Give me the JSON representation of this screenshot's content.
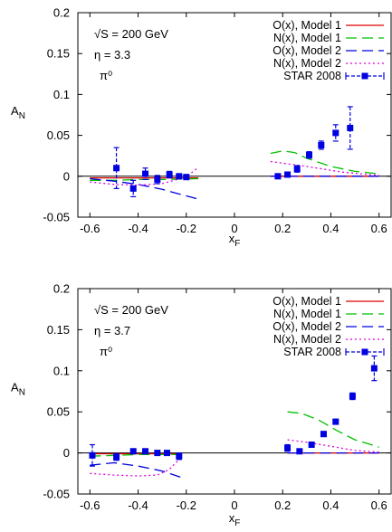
{
  "chart_data": [
    {
      "type": "scatter",
      "annotations": [
        "√S = 200 GeV",
        "η = 3.3",
        "π⁰"
      ],
      "xlabel": "x_F",
      "ylabel": "A_N",
      "xlim": [
        -0.65,
        0.65
      ],
      "ylim": [
        -0.05,
        0.2
      ],
      "xticks": [
        -0.6,
        -0.4,
        -0.2,
        0,
        0.2,
        0.4,
        0.6
      ],
      "yticks": [
        -0.05,
        0,
        0.05,
        0.1,
        0.15,
        0.2
      ],
      "xtick_labels": [
        "-0.6",
        "-0.4",
        "-0.2",
        "0",
        "0.2",
        "0.4",
        "0.6"
      ],
      "ytick_labels": [
        "-0.05",
        "0",
        "0.05",
        "0.1",
        "0.15",
        "0.2"
      ],
      "legend_position": "top-right",
      "series": [
        {
          "name": "O(x), Model 1",
          "color": "#e00000",
          "style": "solid",
          "x": [
            -0.6,
            -0.5,
            -0.4,
            -0.3,
            -0.15,
            0.15,
            0.3,
            0.45,
            0.6
          ],
          "y": [
            -0.002,
            -0.002,
            -0.002,
            -0.002,
            -0.002,
            0.0,
            0.0,
            0.0,
            0.0
          ],
          "segments": [
            [
              0,
              4
            ],
            [
              5,
              8
            ]
          ]
        },
        {
          "name": "N(x), Model 1",
          "color": "#00c000",
          "style": "dashed",
          "x": [
            -0.6,
            -0.5,
            -0.4,
            -0.3,
            -0.15,
            0.15,
            0.2,
            0.25,
            0.3,
            0.4,
            0.5,
            0.6
          ],
          "y": [
            -0.005,
            -0.005,
            -0.004,
            -0.004,
            -0.003,
            0.028,
            0.031,
            0.029,
            0.022,
            0.012,
            0.006,
            0.003
          ],
          "segments": [
            [
              0,
              4
            ],
            [
              5,
              11
            ]
          ]
        },
        {
          "name": "O(x), Model 2",
          "color": "#0000e0",
          "style": "dashed",
          "x": [
            -0.6,
            -0.5,
            -0.4,
            -0.3,
            -0.15,
            0.15,
            0.3,
            0.45,
            0.6
          ],
          "y": [
            -0.003,
            -0.006,
            -0.01,
            -0.016,
            -0.028,
            0.0,
            0.0,
            0.0,
            0.0
          ],
          "segments": [
            [
              0,
              4
            ],
            [
              5,
              8
            ]
          ]
        },
        {
          "name": "N(x), Model 2",
          "color": "#e000e0",
          "style": "dotted",
          "x": [
            -0.6,
            -0.5,
            -0.4,
            -0.3,
            -0.2,
            -0.15,
            0.15,
            0.3,
            0.45,
            0.6
          ],
          "y": [
            -0.007,
            -0.01,
            -0.011,
            -0.009,
            -0.001,
            0.011,
            0.018,
            0.012,
            0.005,
            0.001
          ],
          "segments": [
            [
              0,
              5
            ],
            [
              6,
              9
            ]
          ]
        }
      ],
      "points": {
        "name": "STAR 2008",
        "color": "#0000e0",
        "x": [
          -0.49,
          -0.42,
          -0.37,
          -0.32,
          -0.27,
          -0.23,
          -0.2,
          0.18,
          0.22,
          0.26,
          0.31,
          0.36,
          0.42,
          0.48
        ],
        "y": [
          0.01,
          -0.015,
          0.003,
          -0.004,
          0.002,
          0.0,
          -0.001,
          0.0,
          0.002,
          0.009,
          0.026,
          0.038,
          0.053,
          0.059
        ],
        "yerr": [
          0.025,
          0.01,
          0.007,
          0.005,
          0.004,
          0.003,
          0.003,
          0.003,
          0.003,
          0.004,
          0.004,
          0.005,
          0.01,
          0.026
        ]
      }
    },
    {
      "type": "scatter",
      "annotations": [
        "√S = 200 GeV",
        "η = 3.7",
        "π⁰"
      ],
      "xlabel": "x_F",
      "ylabel": "A_N",
      "xlim": [
        -0.65,
        0.65
      ],
      "ylim": [
        -0.05,
        0.2
      ],
      "xticks": [
        -0.6,
        -0.4,
        -0.2,
        0,
        0.2,
        0.4,
        0.6
      ],
      "yticks": [
        -0.05,
        0,
        0.05,
        0.1,
        0.15,
        0.2
      ],
      "xtick_labels": [
        "-0.6",
        "-0.4",
        "-0.2",
        "0",
        "0.2",
        "0.4",
        "0.6"
      ],
      "ytick_labels": [
        "-0.05",
        "0",
        "0.05",
        "0.1",
        "0.15",
        "0.2"
      ],
      "legend_position": "top-right",
      "series": [
        {
          "name": "O(x), Model 1",
          "color": "#e00000",
          "style": "solid",
          "x": [
            -0.6,
            -0.5,
            -0.4,
            -0.3,
            -0.22,
            0.22,
            0.35,
            0.5,
            0.6
          ],
          "y": [
            -0.001,
            -0.001,
            -0.001,
            -0.001,
            -0.001,
            0.0,
            0.0,
            0.0,
            0.0
          ],
          "segments": [
            [
              0,
              4
            ],
            [
              5,
              8
            ]
          ]
        },
        {
          "name": "N(x), Model 1",
          "color": "#00c000",
          "style": "dashed",
          "x": [
            -0.6,
            -0.5,
            -0.4,
            -0.3,
            -0.22,
            0.22,
            0.28,
            0.35,
            0.42,
            0.5,
            0.6
          ],
          "y": [
            -0.004,
            -0.003,
            -0.002,
            -0.002,
            -0.002,
            0.05,
            0.048,
            0.04,
            0.028,
            0.016,
            0.007
          ],
          "segments": [
            [
              0,
              4
            ],
            [
              5,
              10
            ]
          ]
        },
        {
          "name": "O(x), Model 2",
          "color": "#0000e0",
          "style": "dashed",
          "x": [
            -0.6,
            -0.5,
            -0.4,
            -0.3,
            -0.22,
            0.22,
            0.35,
            0.5,
            0.6
          ],
          "y": [
            -0.015,
            -0.012,
            -0.016,
            -0.022,
            -0.03,
            0.0,
            0.0,
            0.0,
            0.0
          ],
          "segments": [
            [
              0,
              4
            ],
            [
              5,
              8
            ]
          ]
        },
        {
          "name": "N(x), Model 2",
          "color": "#e000e0",
          "style": "dotted",
          "x": [
            -0.6,
            -0.5,
            -0.4,
            -0.32,
            -0.27,
            -0.22,
            0.22,
            0.3,
            0.4,
            0.5,
            0.6
          ],
          "y": [
            -0.025,
            -0.027,
            -0.028,
            -0.027,
            -0.02,
            -0.005,
            0.016,
            0.013,
            0.008,
            0.003,
            0.001
          ],
          "segments": [
            [
              0,
              5
            ],
            [
              6,
              10
            ]
          ]
        }
      ],
      "points": {
        "name": "STAR 2008",
        "color": "#0000e0",
        "x": [
          -0.59,
          -0.49,
          -0.42,
          -0.37,
          -0.32,
          -0.28,
          -0.23,
          0.22,
          0.27,
          0.32,
          0.37,
          0.42,
          0.49,
          0.58
        ],
        "y": [
          -0.003,
          -0.005,
          0.002,
          0.002,
          0.0,
          0.0,
          -0.004,
          0.006,
          0.002,
          0.01,
          0.023,
          0.038,
          0.069,
          0.103
        ],
        "yerr": [
          0.013,
          0.004,
          0.003,
          0.003,
          0.002,
          0.002,
          0.004,
          0.004,
          0.002,
          0.003,
          0.003,
          0.003,
          0.004,
          0.015
        ]
      }
    }
  ]
}
